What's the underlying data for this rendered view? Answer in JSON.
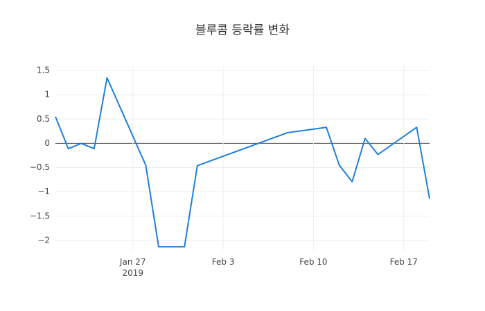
{
  "chart_data": {
    "type": "line",
    "title": "블루콤 등락률 변화",
    "x": [
      "2019-01-21",
      "2019-01-22",
      "2019-01-23",
      "2019-01-24",
      "2019-01-25",
      "2019-01-28",
      "2019-01-29",
      "2019-01-31",
      "2019-02-01",
      "2019-02-08",
      "2019-02-11",
      "2019-02-12",
      "2019-02-13",
      "2019-02-14",
      "2019-02-15",
      "2019-02-18",
      "2019-02-19"
    ],
    "series": [
      {
        "color": "#1f7fd9",
        "values": [
          0.55,
          -0.11,
          0.0,
          -0.11,
          1.35,
          -0.45,
          -2.13,
          -2.13,
          -0.46,
          0.22,
          0.33,
          -0.45,
          -0.79,
          0.1,
          -0.23,
          0.33,
          -1.14
        ]
      }
    ],
    "xlim": [
      "2019-01-21",
      "2019-02-19"
    ],
    "xticks": [
      {
        "value": "2019-01-27",
        "label": "Jan 27\n2019"
      },
      {
        "value": "2019-02-03",
        "label": "Feb 3"
      },
      {
        "value": "2019-02-10",
        "label": "Feb 10"
      },
      {
        "value": "2019-02-17",
        "label": "Feb 17"
      }
    ],
    "ylim": [
      -2.2,
      1.6
    ],
    "yticks": [
      {
        "value": -2,
        "label": "−2"
      },
      {
        "value": -1.5,
        "label": "−1.5"
      },
      {
        "value": -1,
        "label": "−1"
      },
      {
        "value": -0.5,
        "label": "−0.5"
      },
      0,
      0.5,
      1,
      1.5
    ],
    "grid": true
  }
}
